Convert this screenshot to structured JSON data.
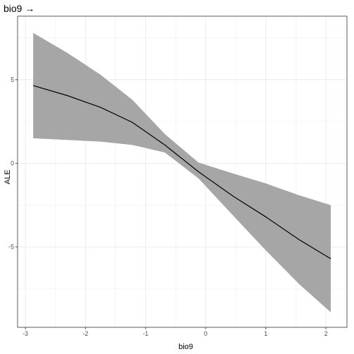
{
  "chart_data": {
    "type": "line",
    "title": "bio9 →",
    "xlabel": "bio9",
    "ylabel": "ALE",
    "xlim": [
      -3.13,
      2.35
    ],
    "ylim": [
      -9.8,
      8.8
    ],
    "x_ticks": [
      -3,
      -2,
      -1,
      0,
      1,
      2
    ],
    "y_ticks": [
      -5,
      0,
      5
    ],
    "grid": true,
    "series": [
      {
        "x": [
          -2.87,
          -2.3,
          -1.75,
          -1.22,
          -0.68,
          -0.12,
          0.45,
          1.0,
          1.55,
          2.08
        ],
        "y": [
          4.65,
          4.05,
          3.35,
          2.45,
          1.1,
          -0.5,
          -1.95,
          -3.2,
          -4.55,
          -5.7
        ],
        "lower": [
          1.5,
          1.4,
          1.3,
          1.1,
          0.65,
          -0.9,
          -3.1,
          -5.2,
          -7.2,
          -8.9
        ],
        "upper": [
          7.8,
          6.6,
          5.3,
          3.8,
          1.75,
          0.05,
          -0.6,
          -1.2,
          -1.9,
          -2.5
        ]
      }
    ],
    "colors": {
      "line": "#000000",
      "band": "#a6a6a6",
      "grid": "#ebebeb",
      "panel_border": "#333333"
    }
  }
}
